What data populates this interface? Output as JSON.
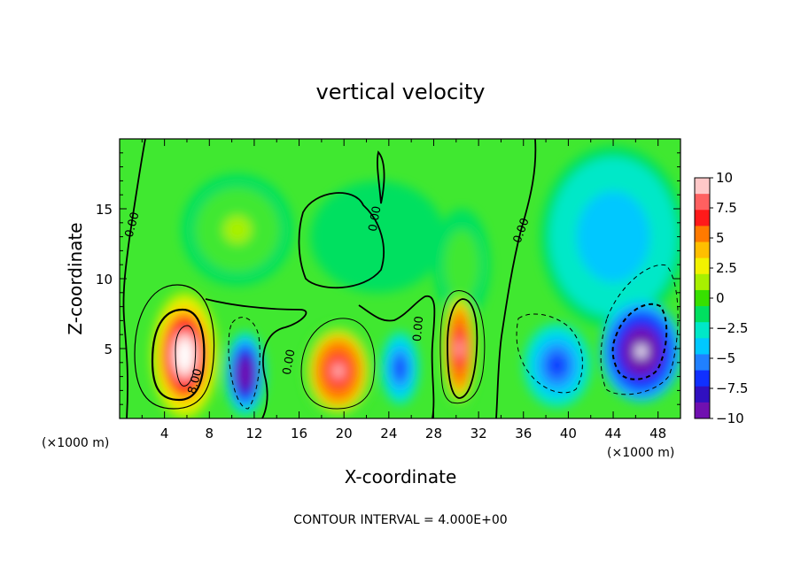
{
  "chart_data": {
    "type": "heatmap",
    "title": "vertical velocity",
    "xlabel": "X-coordinate",
    "ylabel": "Z-coordinate",
    "x_unit_label": "(×1000 m)",
    "x_ticks": [
      4,
      8,
      12,
      16,
      20,
      24,
      28,
      32,
      36,
      40,
      44,
      48
    ],
    "y_ticks": [
      5,
      10,
      15
    ],
    "xlim": [
      0,
      50
    ],
    "ylim": [
      0,
      20
    ],
    "colorbar": {
      "ticks": [
        "10",
        "7.5",
        "5",
        "2.5",
        "0",
        "−2.5",
        "−5",
        "−7.5",
        "−10"
      ],
      "range": [
        -10,
        10
      ],
      "colors": [
        "#ffc8c8",
        "#ff6060",
        "#ff1a1a",
        "#ff7a00",
        "#ffbf00",
        "#f2f200",
        "#a8f000",
        "#37e000",
        "#00e060",
        "#00e8c8",
        "#00c8ff",
        "#2080ff",
        "#1030ff",
        "#3010c0",
        "#7010b0"
      ]
    },
    "contour_labels": [
      "0.00",
      "0.00",
      "0.00",
      "0.00",
      "0.00",
      "8.00"
    ],
    "blobs": [
      {
        "x": 5.8,
        "z": 4.5,
        "rx": 3.0,
        "rz": 4.6,
        "value": 14
      },
      {
        "x": 19.5,
        "z": 3.4,
        "rx": 3.1,
        "rz": 3.4,
        "value": 11
      },
      {
        "x": 30.3,
        "z": 5.0,
        "rx": 1.6,
        "rz": 4.3,
        "value": 11
      },
      {
        "x": 11.2,
        "z": 3.2,
        "rx": 1.8,
        "rz": 3.0,
        "value": -11
      },
      {
        "x": 25.0,
        "z": 3.6,
        "rx": 1.7,
        "rz": 2.6,
        "value": -6
      },
      {
        "x": 39.0,
        "z": 3.8,
        "rx": 3.0,
        "rz": 3.0,
        "value": -6
      },
      {
        "x": 46.5,
        "z": 4.8,
        "rx": 3.6,
        "rz": 3.6,
        "value": -13
      },
      {
        "x": 44.0,
        "z": 13.0,
        "rx": 6.5,
        "rz": 6.5,
        "value": -2.5
      },
      {
        "x": 23.0,
        "z": 13.0,
        "rx": 6.0,
        "rz": 4.0,
        "value": 0.3
      },
      {
        "x": 10.5,
        "z": 13.5,
        "rx": 5.0,
        "rz": 4.0,
        "value": 1.8
      },
      {
        "x": 30.5,
        "z": 11.0,
        "rx": 2.5,
        "rz": 4.0,
        "value": 1.2
      }
    ],
    "grid": false,
    "legend": "right"
  },
  "footer": {
    "contour_interval_text": "CONTOUR INTERVAL = 4.000E+00"
  }
}
